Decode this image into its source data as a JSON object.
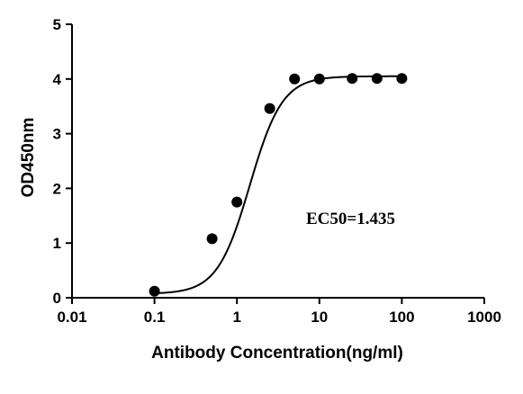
{
  "chart_data": {
    "type": "scatter",
    "title": "",
    "xlabel": "Antibody Concentration(ng/ml)",
    "ylabel": "OD450nm",
    "xscale": "log",
    "xlim": [
      0.01,
      1000
    ],
    "ylim": [
      0,
      5
    ],
    "xticks": [
      0.01,
      0.1,
      1,
      10,
      100,
      1000
    ],
    "xtick_labels": [
      "0.01",
      "0.1",
      "1",
      "10",
      "100",
      "1000"
    ],
    "yticks": [
      0,
      1,
      2,
      3,
      4,
      5
    ],
    "ytick_labels": [
      "0",
      "1",
      "2",
      "3",
      "4",
      "5"
    ],
    "grid": false,
    "series": [
      {
        "x": [
          0.1,
          0.5,
          1,
          2.5,
          5,
          10,
          25,
          50,
          100
        ],
        "y": [
          0.12,
          1.08,
          1.75,
          3.46,
          4.0,
          4.0,
          4.01,
          4.01,
          4.01
        ]
      }
    ],
    "fit": {
      "model": "four-parameter logistic",
      "bottom": 0.07,
      "top": 4.05,
      "ec50": 1.435,
      "hill": 2.2,
      "x_range": [
        0.1,
        100
      ]
    },
    "annotation": "EC50=1.435"
  }
}
